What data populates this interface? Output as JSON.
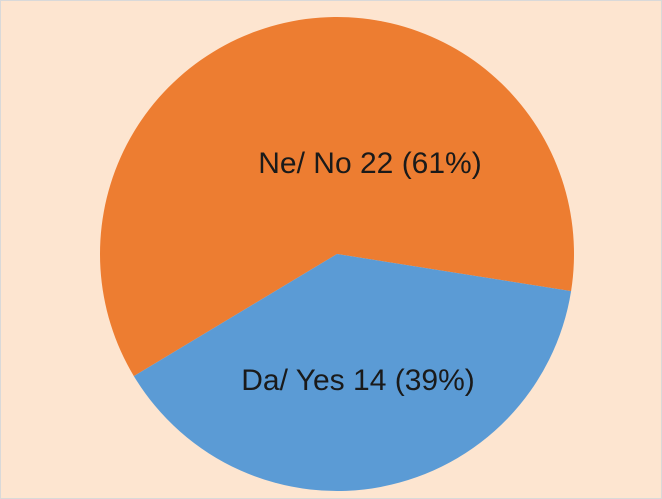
{
  "chart_data": {
    "type": "pie",
    "categories": [
      "Ne/ No",
      "Da/ Yes"
    ],
    "values": [
      22,
      14
    ],
    "value_labels": [
      "22 (61%)",
      "14 (39%)"
    ],
    "colors": [
      "#ed7d31",
      "#5b9bd5"
    ]
  }
}
